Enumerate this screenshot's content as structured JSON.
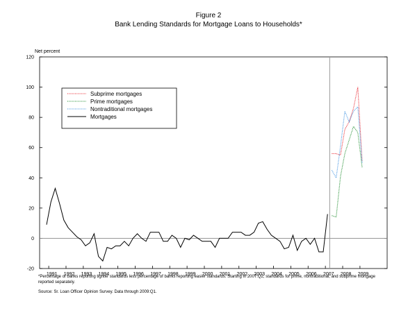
{
  "chart_data": {
    "type": "line",
    "title": "Figure 2",
    "subtitle": "Bank Lending Standards for Mortgage Loans to Households*",
    "y_label": "Net percent",
    "footnote": "*Percentage of banks reporting tighter standards less percentage of banks reporting easier standards. Starting in 2007:Q2, standards for prime, nontraditional, and subprime mortgage reported separately.",
    "source": "Source: Sr. Loan Officer Opinion Survey. Data through 2009:Q1.",
    "categories": [
      null,
      "1991",
      null,
      null,
      null,
      "1992",
      null,
      null,
      null,
      "1993",
      null,
      null,
      null,
      "1994",
      null,
      null,
      null,
      "1995",
      null,
      null,
      null,
      "1996",
      null,
      null,
      null,
      "1997",
      null,
      null,
      null,
      "1998",
      null,
      null,
      null,
      "1999",
      null,
      null,
      null,
      "2000",
      null,
      null,
      null,
      "2001",
      null,
      null,
      null,
      "2002",
      null,
      null,
      null,
      "2003",
      null,
      null,
      null,
      "2004",
      null,
      null,
      null,
      "2005",
      null,
      null,
      null,
      "2006",
      null,
      null,
      null,
      "2007",
      null,
      null,
      null,
      "2008",
      null,
      null,
      null,
      "2009"
    ],
    "series": [
      {
        "name": "Subprime mortgages",
        "color": "#e8202a",
        "line_style": "dotted",
        "values": [
          null,
          null,
          null,
          null,
          null,
          null,
          null,
          null,
          null,
          null,
          null,
          null,
          null,
          null,
          null,
          null,
          null,
          null,
          null,
          null,
          null,
          null,
          null,
          null,
          null,
          null,
          null,
          null,
          null,
          null,
          null,
          null,
          null,
          null,
          null,
          null,
          null,
          null,
          null,
          null,
          null,
          null,
          null,
          null,
          null,
          null,
          null,
          null,
          null,
          null,
          null,
          null,
          null,
          null,
          null,
          null,
          null,
          null,
          null,
          null,
          null,
          null,
          null,
          null,
          null,
          null,
          56,
          56,
          55,
          72,
          77,
          86,
          100,
          51
        ]
      },
      {
        "name": "Prime mortgages",
        "color": "#1a8a2a",
        "line_style": "dotted",
        "values": [
          null,
          null,
          null,
          null,
          null,
          null,
          null,
          null,
          null,
          null,
          null,
          null,
          null,
          null,
          null,
          null,
          null,
          null,
          null,
          null,
          null,
          null,
          null,
          null,
          null,
          null,
          null,
          null,
          null,
          null,
          null,
          null,
          null,
          null,
          null,
          null,
          null,
          null,
          null,
          null,
          null,
          null,
          null,
          null,
          null,
          null,
          null,
          null,
          null,
          null,
          null,
          null,
          null,
          null,
          null,
          null,
          null,
          null,
          null,
          null,
          null,
          null,
          null,
          null,
          null,
          null,
          15,
          14,
          41,
          56,
          65,
          74,
          70,
          47
        ]
      },
      {
        "name": "Nontraditional mortgages",
        "color": "#3a8fe0",
        "line_style": "dotted",
        "values": [
          null,
          null,
          null,
          null,
          null,
          null,
          null,
          null,
          null,
          null,
          null,
          null,
          null,
          null,
          null,
          null,
          null,
          null,
          null,
          null,
          null,
          null,
          null,
          null,
          null,
          null,
          null,
          null,
          null,
          null,
          null,
          null,
          null,
          null,
          null,
          null,
          null,
          null,
          null,
          null,
          null,
          null,
          null,
          null,
          null,
          null,
          null,
          null,
          null,
          null,
          null,
          null,
          null,
          null,
          null,
          null,
          null,
          null,
          null,
          null,
          null,
          null,
          null,
          null,
          null,
          null,
          45,
          40,
          61,
          84,
          77,
          84,
          87,
          50
        ]
      },
      {
        "name": "Mortgages",
        "color": "#000000",
        "line_style": "solid",
        "values": [
          9,
          24,
          33,
          23,
          12,
          7,
          4,
          1,
          -1,
          -5,
          -3,
          3,
          -12,
          -15,
          -6,
          -7,
          -5,
          -5,
          -2,
          -5,
          0,
          3,
          0,
          -2,
          4,
          4,
          4,
          -2,
          -2,
          2,
          0,
          -6,
          0,
          -1,
          2,
          0,
          -2,
          -2,
          -2,
          -6,
          0,
          0,
          0,
          4,
          4,
          4,
          2,
          2,
          4,
          10,
          11,
          6,
          2,
          0,
          -2,
          -7,
          -6,
          2,
          -8,
          -2,
          0,
          -4,
          0,
          -9,
          -9,
          16,
          null,
          null,
          null,
          null,
          null,
          null,
          null,
          null
        ]
      }
    ],
    "ylim": [
      -20,
      120
    ],
    "yticks": [
      -20,
      0,
      20,
      40,
      60,
      80,
      100,
      120
    ],
    "zero_line": true,
    "legend": "upper left"
  }
}
